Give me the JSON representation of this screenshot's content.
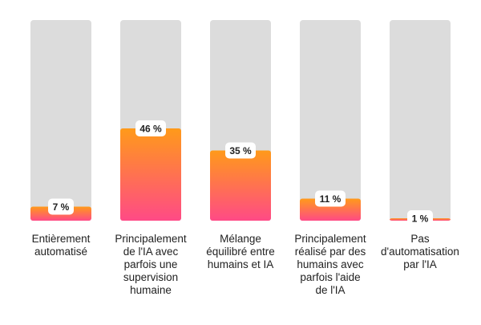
{
  "chart_data": {
    "type": "bar",
    "categories": [
      "Entièrement\nautomatisé",
      "Principalement\nde l'IA avec\nparfois une\nsupervision\nhumaine",
      "Mélange\néquilibré entre\nhumains et IA",
      "Principalement\nréalisé par des\nhumains avec\nparfois l'aide\nde l'IA",
      "Pas\nd'automatisation\npar l'IA"
    ],
    "values": [
      7,
      46,
      35,
      11,
      1
    ],
    "value_labels": [
      "7 %",
      "46 %",
      "35 %",
      "11 %",
      "1 %"
    ],
    "ylim": [
      0,
      100
    ],
    "title": "",
    "xlabel": "",
    "ylabel": "",
    "grid": false,
    "colors": {
      "track": "#dcdcdc",
      "bar_top": "#ff9a1a",
      "bar_bottom": "#ff4a86",
      "label_bg": "#ffffff",
      "text": "#222222"
    }
  }
}
